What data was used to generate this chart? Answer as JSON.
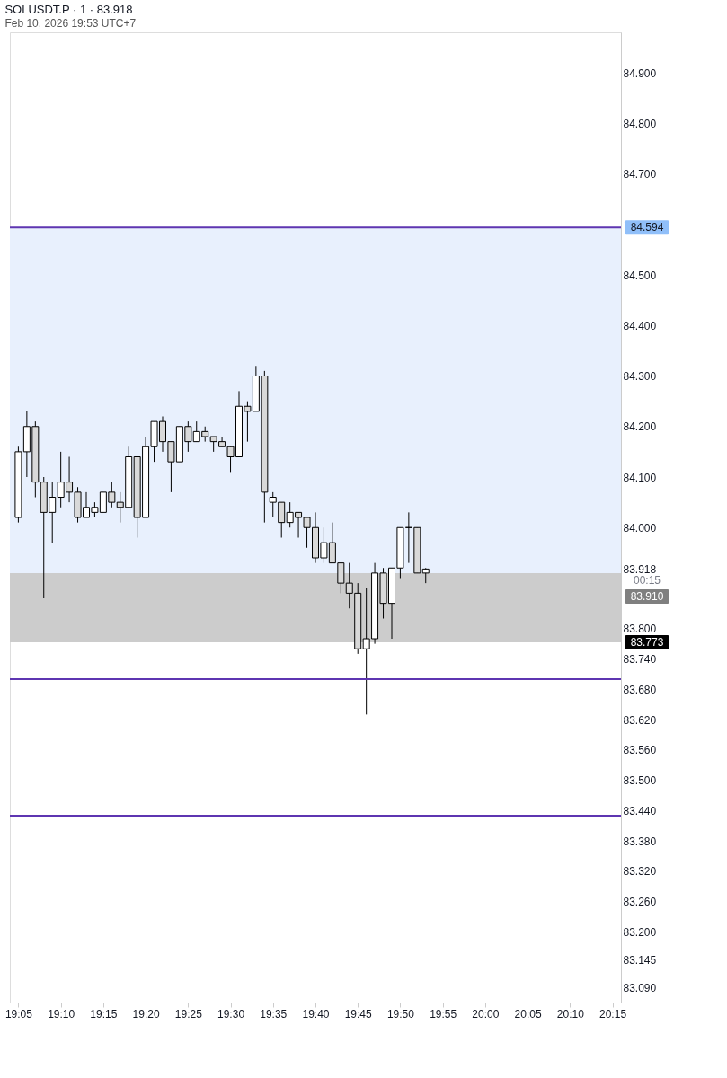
{
  "chart_data": {
    "type": "candlestick",
    "title": "SOLUSDT.P · 1 · 83.918",
    "subtitle": "Feb 10, 2026 19:53 UTC+7",
    "x": [
      19.0833,
      19.1,
      19.1167,
      19.1333,
      19.15,
      19.1667,
      19.1833,
      19.2,
      19.2167,
      19.2333,
      19.25,
      19.2667,
      19.2833,
      19.3,
      19.3167,
      19.3333,
      19.35,
      19.3667,
      19.3833,
      19.4,
      19.4167,
      19.4333,
      19.45,
      19.4667,
      19.4833,
      19.5,
      19.5167,
      19.5333,
      19.55,
      19.5667,
      19.5833,
      19.6,
      19.6167,
      19.6333,
      19.65,
      19.6667,
      19.6833,
      19.7,
      19.7167,
      19.7333,
      19.75,
      19.7667,
      19.7833,
      19.8,
      19.8167,
      19.8333,
      19.85,
      19.8667,
      19.8833
    ],
    "ohlc": [
      [
        84.02,
        84.16,
        84.01,
        84.15
      ],
      [
        84.15,
        84.23,
        84.1,
        84.2
      ],
      [
        84.2,
        84.21,
        84.06,
        84.09
      ],
      [
        84.09,
        84.1,
        83.86,
        84.03
      ],
      [
        84.03,
        84.09,
        83.97,
        84.06
      ],
      [
        84.06,
        84.15,
        84.04,
        84.09
      ],
      [
        84.09,
        84.14,
        84.05,
        84.07
      ],
      [
        84.07,
        84.08,
        84.01,
        84.02
      ],
      [
        84.02,
        84.07,
        84.02,
        84.04
      ],
      [
        84.03,
        84.05,
        84.02,
        84.04
      ],
      [
        84.03,
        84.07,
        84.03,
        84.07
      ],
      [
        84.07,
        84.09,
        84.04,
        84.05
      ],
      [
        84.05,
        84.07,
        84.01,
        84.04
      ],
      [
        84.04,
        84.16,
        84.04,
        84.14
      ],
      [
        84.14,
        84.14,
        83.98,
        84.02
      ],
      [
        84.02,
        84.18,
        84.02,
        84.16
      ],
      [
        84.16,
        84.21,
        84.13,
        84.21
      ],
      [
        84.21,
        84.22,
        84.15,
        84.17
      ],
      [
        84.17,
        84.17,
        84.07,
        84.13
      ],
      [
        84.13,
        84.2,
        84.13,
        84.2
      ],
      [
        84.2,
        84.21,
        84.15,
        84.17
      ],
      [
        84.17,
        84.21,
        84.17,
        84.19
      ],
      [
        84.19,
        84.2,
        84.17,
        84.18
      ],
      [
        84.18,
        84.18,
        84.15,
        84.17
      ],
      [
        84.17,
        84.18,
        84.16,
        84.16
      ],
      [
        84.16,
        84.16,
        84.11,
        84.14
      ],
      [
        84.14,
        84.27,
        84.14,
        84.24
      ],
      [
        84.24,
        84.25,
        84.17,
        84.23
      ],
      [
        84.23,
        84.32,
        84.23,
        84.3
      ],
      [
        84.3,
        84.31,
        84.01,
        84.07
      ],
      [
        84.05,
        84.07,
        84.02,
        84.06
      ],
      [
        84.05,
        84.05,
        83.98,
        84.01
      ],
      [
        84.01,
        84.05,
        84.0,
        84.03
      ],
      [
        84.03,
        84.03,
        83.98,
        84.02
      ],
      [
        84.02,
        84.02,
        83.96,
        84.0
      ],
      [
        84.0,
        84.03,
        83.93,
        83.94
      ],
      [
        83.94,
        84.0,
        83.93,
        83.97
      ],
      [
        83.97,
        84.01,
        83.93,
        83.93
      ],
      [
        83.93,
        83.93,
        83.87,
        83.89
      ],
      [
        83.89,
        83.93,
        83.84,
        83.87
      ],
      [
        83.87,
        83.89,
        83.75,
        83.76
      ],
      [
        83.76,
        83.88,
        83.63,
        83.78
      ],
      [
        83.78,
        83.93,
        83.77,
        83.91
      ],
      [
        83.91,
        83.92,
        83.82,
        83.85
      ],
      [
        83.85,
        83.92,
        83.78,
        83.92
      ],
      [
        83.92,
        84.0,
        83.9,
        84.0
      ],
      [
        84.0,
        84.03,
        83.93,
        84.0
      ],
      [
        84.0,
        84.0,
        83.91,
        83.91
      ],
      [
        83.91,
        83.92,
        83.89,
        83.918
      ]
    ],
    "xlim": [
      19.0667,
      20.2667
    ],
    "xticks": [
      {
        "value": 19.0833,
        "label": "19:05"
      },
      {
        "value": 19.1667,
        "label": "19:10"
      },
      {
        "value": 19.25,
        "label": "19:15"
      },
      {
        "value": 19.3333,
        "label": "19:20"
      },
      {
        "value": 19.4167,
        "label": "19:25"
      },
      {
        "value": 19.5,
        "label": "19:30"
      },
      {
        "value": 19.5833,
        "label": "19:35"
      },
      {
        "value": 19.6667,
        "label": "19:40"
      },
      {
        "value": 19.75,
        "label": "19:45"
      },
      {
        "value": 19.8333,
        "label": "19:50"
      },
      {
        "value": 19.9167,
        "label": "19:55"
      },
      {
        "value": 20.0,
        "label": "20:00"
      },
      {
        "value": 20.0833,
        "label": "20:05"
      },
      {
        "value": 20.1667,
        "label": "20:10"
      },
      {
        "value": 20.25,
        "label": "20:15"
      }
    ],
    "ylim": [
      83.06,
      84.98
    ],
    "yticks": [
      {
        "value": 84.9,
        "label": "84.900"
      },
      {
        "value": 84.8,
        "label": "84.800"
      },
      {
        "value": 84.7,
        "label": "84.700"
      },
      {
        "value": 84.5,
        "label": "84.500"
      },
      {
        "value": 84.4,
        "label": "84.400"
      },
      {
        "value": 84.3,
        "label": "84.300"
      },
      {
        "value": 84.2,
        "label": "84.200"
      },
      {
        "value": 84.1,
        "label": "84.100"
      },
      {
        "value": 84.0,
        "label": "84.000"
      },
      {
        "value": 83.918,
        "label": "83.918"
      },
      {
        "value": 83.8,
        "label": "83.800"
      },
      {
        "value": 83.74,
        "label": "83.740"
      },
      {
        "value": 83.68,
        "label": "83.680"
      },
      {
        "value": 83.62,
        "label": "83.620"
      },
      {
        "value": 83.56,
        "label": "83.560"
      },
      {
        "value": 83.5,
        "label": "83.500"
      },
      {
        "value": 83.44,
        "label": "83.440"
      },
      {
        "value": 83.38,
        "label": "83.380"
      },
      {
        "value": 83.32,
        "label": "83.320"
      },
      {
        "value": 83.26,
        "label": "83.260"
      },
      {
        "value": 83.2,
        "label": "83.200"
      },
      {
        "value": 83.145,
        "label": "83.145"
      },
      {
        "value": 83.09,
        "label": "83.090"
      }
    ],
    "ref_lines": [
      {
        "axis": "y",
        "value": 84.594,
        "label": "84.594",
        "color": "#5e35b1"
      },
      {
        "axis": "y",
        "value": 83.7,
        "label": null,
        "color": "#5e35b1"
      },
      {
        "axis": "y",
        "value": 83.43,
        "label": null,
        "color": "#5e35b1"
      }
    ],
    "bands": [
      {
        "axis": "y",
        "from": 83.91,
        "to": 84.594,
        "label": "83.910",
        "color": "#e8f0fd"
      },
      {
        "axis": "y",
        "from": 83.773,
        "to": 83.91,
        "label": "83.773",
        "color": "#cccccc"
      }
    ],
    "annotations": [
      "00:15"
    ],
    "grid": false
  }
}
